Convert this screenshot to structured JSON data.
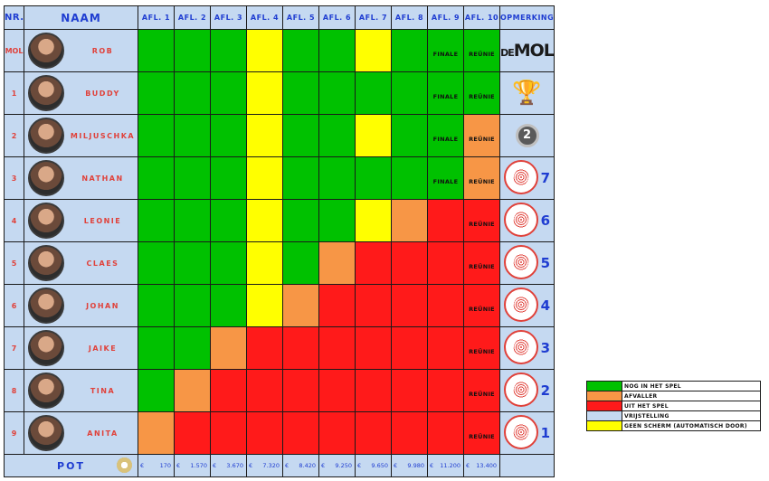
{
  "header": {
    "nr": "NR.",
    "naam": "NAAM",
    "episodes": [
      "AFL. 1",
      "AFL. 2",
      "AFL. 3",
      "AFL. 4",
      "AFL. 5",
      "AFL. 6",
      "AFL. 7",
      "AFL. 8",
      "AFL. 9",
      "AFL. 10"
    ],
    "opmerking": "OPMERKING"
  },
  "colors": {
    "green": "#00c100",
    "orange": "#f79646",
    "red": "#ff1a1a",
    "blue": "#c5d9f1",
    "yellow": "#ffff00"
  },
  "rows": [
    {
      "nr": "MOL",
      "name": "ROB",
      "cells": [
        "green",
        "green",
        "green",
        "yellow",
        "green",
        "green",
        "yellow",
        "green",
        "green",
        "green"
      ],
      "labels": [
        "",
        "",
        "",
        "",
        "",
        "",
        "",
        "",
        "FINALE",
        "REÜNIE"
      ],
      "remark": {
        "type": "logo",
        "pre": "DE",
        "main": "MOL"
      }
    },
    {
      "nr": "1",
      "name": "BUDDY",
      "cells": [
        "green",
        "green",
        "green",
        "yellow",
        "green",
        "green",
        "green",
        "green",
        "green",
        "green"
      ],
      "labels": [
        "",
        "",
        "",
        "",
        "",
        "",
        "",
        "",
        "FINALE",
        "REÜNIE"
      ],
      "remark": {
        "type": "trophy",
        "icon": "trophy-icon"
      }
    },
    {
      "nr": "2",
      "name": "MILJUSCHKA",
      "cells": [
        "green",
        "green",
        "green",
        "yellow",
        "green",
        "green",
        "yellow",
        "green",
        "green",
        "orange"
      ],
      "labels": [
        "",
        "",
        "",
        "",
        "",
        "",
        "",
        "",
        "FINALE",
        "REÜNIE"
      ],
      "remark": {
        "type": "medal",
        "text": "2"
      }
    },
    {
      "nr": "3",
      "name": "NATHAN",
      "cells": [
        "green",
        "green",
        "green",
        "yellow",
        "green",
        "green",
        "green",
        "green",
        "green",
        "orange"
      ],
      "labels": [
        "",
        "",
        "",
        "",
        "",
        "",
        "",
        "",
        "FINALE",
        "REÜNIE"
      ],
      "remark": {
        "type": "fingerprint",
        "text": "7"
      }
    },
    {
      "nr": "4",
      "name": "LEONIE",
      "cells": [
        "green",
        "green",
        "green",
        "yellow",
        "green",
        "green",
        "yellow",
        "orange",
        "red",
        "red"
      ],
      "labels": [
        "",
        "",
        "",
        "",
        "",
        "",
        "",
        "",
        "",
        "REÜNIE"
      ],
      "remark": {
        "type": "fingerprint",
        "text": "6"
      }
    },
    {
      "nr": "5",
      "name": "CLAES",
      "cells": [
        "green",
        "green",
        "green",
        "yellow",
        "green",
        "orange",
        "red",
        "red",
        "red",
        "red"
      ],
      "labels": [
        "",
        "",
        "",
        "",
        "",
        "",
        "",
        "",
        "",
        "REÜNIE"
      ],
      "remark": {
        "type": "fingerprint",
        "text": "5"
      }
    },
    {
      "nr": "6",
      "name": "JOHAN",
      "cells": [
        "green",
        "green",
        "green",
        "yellow",
        "orange",
        "red",
        "red",
        "red",
        "red",
        "red"
      ],
      "labels": [
        "",
        "",
        "",
        "",
        "",
        "",
        "",
        "",
        "",
        "REÜNIE"
      ],
      "remark": {
        "type": "fingerprint",
        "text": "4"
      }
    },
    {
      "nr": "7",
      "name": "JAIKE",
      "cells": [
        "green",
        "green",
        "orange",
        "red",
        "red",
        "red",
        "red",
        "red",
        "red",
        "red"
      ],
      "labels": [
        "",
        "",
        "",
        "",
        "",
        "",
        "",
        "",
        "",
        "REÜNIE"
      ],
      "remark": {
        "type": "fingerprint",
        "text": "3"
      }
    },
    {
      "nr": "8",
      "name": "TINA",
      "cells": [
        "green",
        "orange",
        "red",
        "red",
        "red",
        "red",
        "red",
        "red",
        "red",
        "red"
      ],
      "labels": [
        "",
        "",
        "",
        "",
        "",
        "",
        "",
        "",
        "",
        "REÜNIE"
      ],
      "remark": {
        "type": "fingerprint",
        "text": "2"
      }
    },
    {
      "nr": "9",
      "name": "ANITA",
      "cells": [
        "orange",
        "red",
        "red",
        "red",
        "red",
        "red",
        "red",
        "red",
        "red",
        "red"
      ],
      "labels": [
        "",
        "",
        "",
        "",
        "",
        "",
        "",
        "",
        "",
        "REÜNIE"
      ],
      "remark": {
        "type": "fingerprint",
        "text": "1"
      }
    }
  ],
  "footer": {
    "pot_label": "POT",
    "currency": "€",
    "pot": [
      "170",
      "1.570",
      "3.670",
      "7.320",
      "8.420",
      "9.250",
      "9.650",
      "9.980",
      "11.200",
      "13.400"
    ]
  },
  "legend": [
    {
      "color": "green",
      "label": "NOG IN HET SPEL"
    },
    {
      "color": "orange",
      "label": "AFVALLER"
    },
    {
      "color": "red",
      "label": "UIT HET SPEL"
    },
    {
      "color": "blue",
      "label": "VRIJSTELLING"
    },
    {
      "color": "yellow",
      "label": "GEEN SCHERM (AUTOMATISCH DOOR)"
    }
  ]
}
